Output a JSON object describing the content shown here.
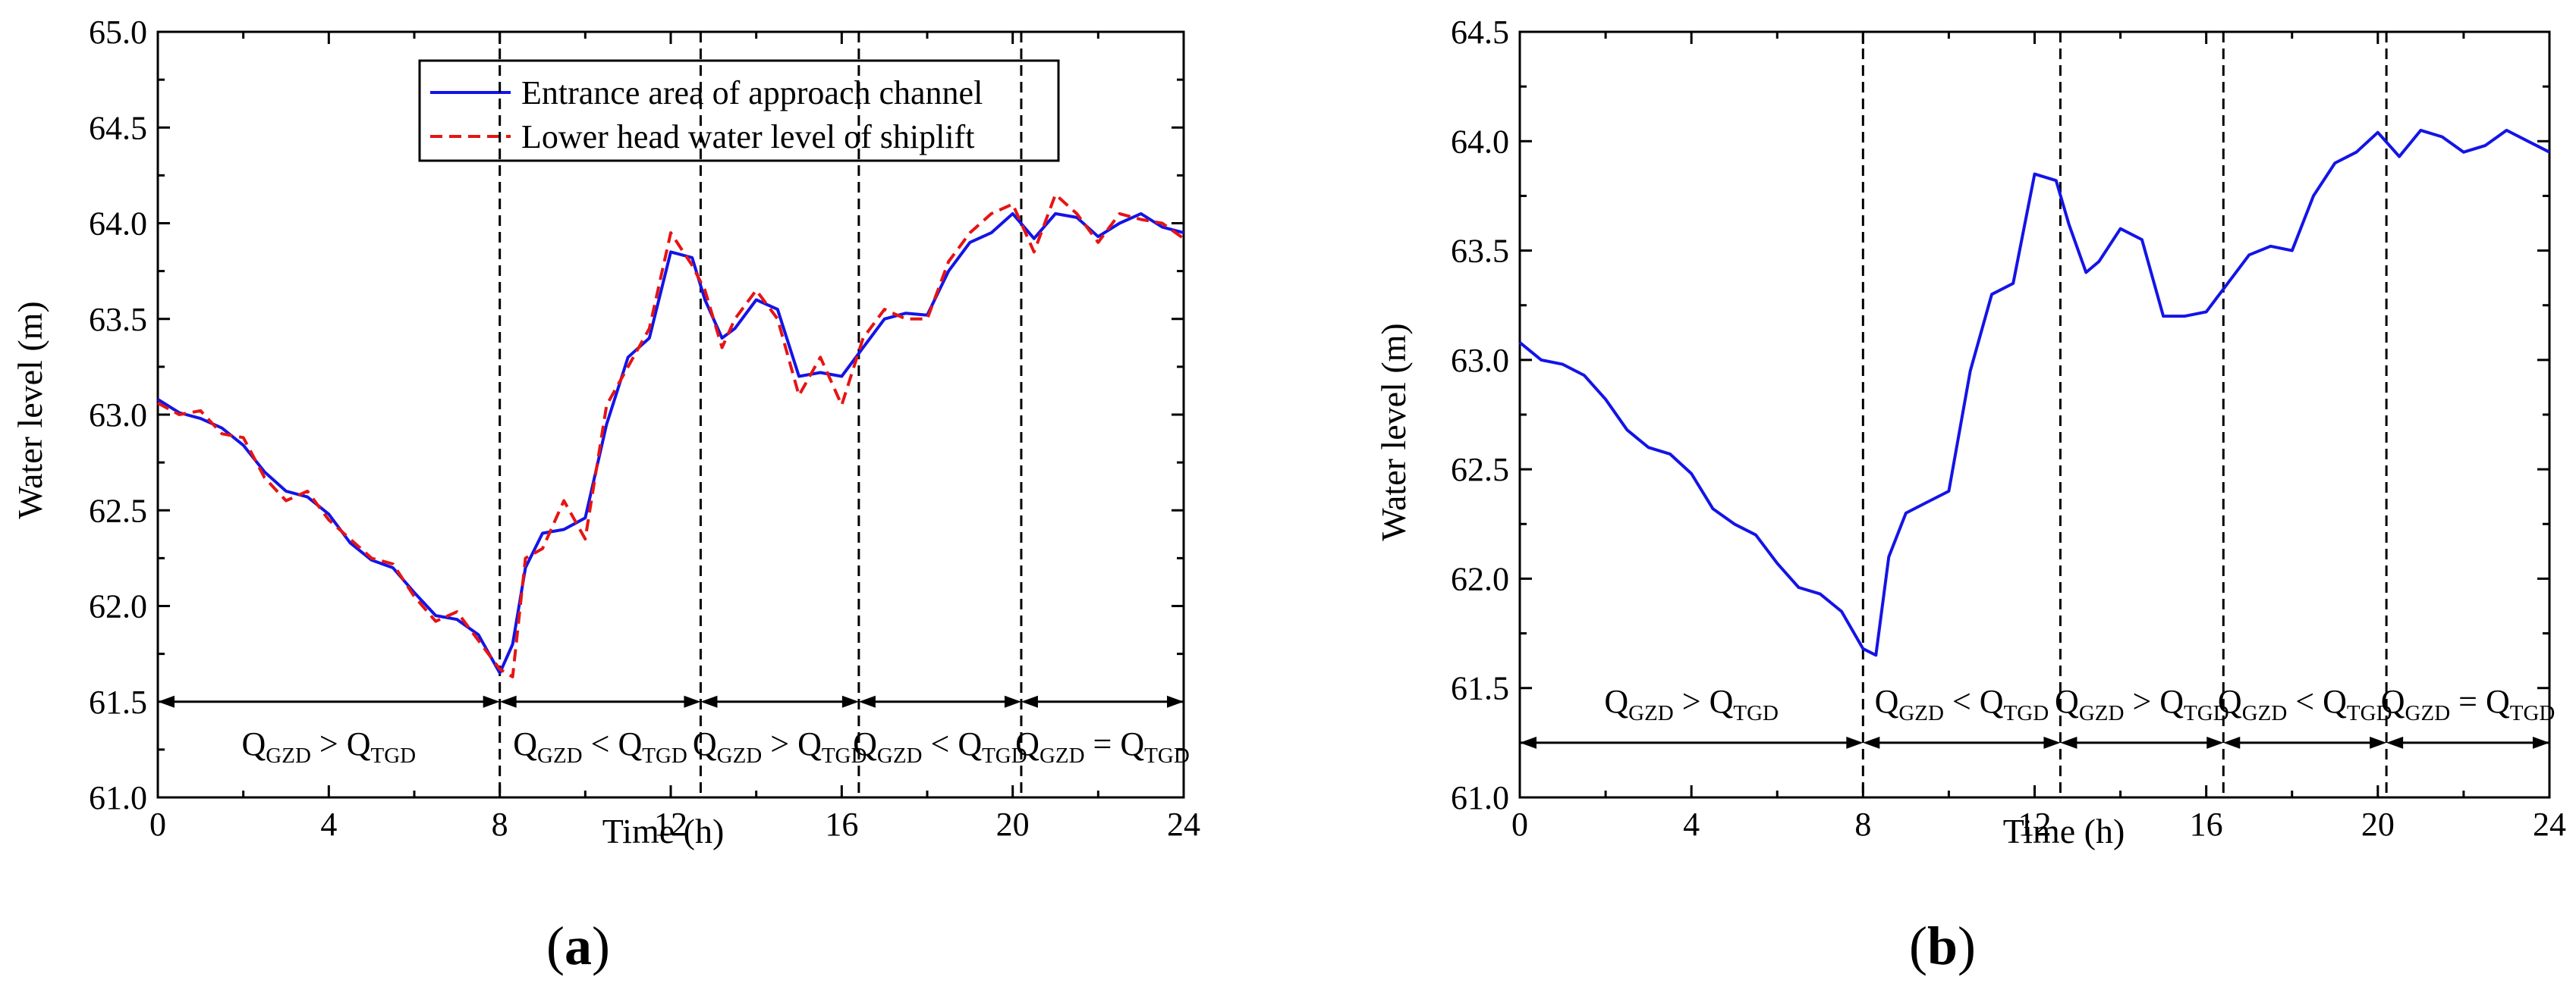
{
  "chart_data": [
    {
      "type": "line",
      "panel_label_prefix": "(",
      "panel_label_letter": "a",
      "panel_label_suffix": ")",
      "xlabel": "Time (h)",
      "ylabel": "Water level (m)",
      "xlim": [
        0,
        24
      ],
      "ylim": [
        61.0,
        65.0
      ],
      "xticks": [
        "0",
        "4",
        "8",
        "12",
        "16",
        "20",
        "24"
      ],
      "yticks": [
        "61.0",
        "61.5",
        "62.0",
        "62.5",
        "63.0",
        "63.5",
        "64.0",
        "64.5",
        "65.0"
      ],
      "dividers": [
        8.0,
        12.7,
        16.4,
        20.2
      ],
      "region_arrow_y": 61.5,
      "regions": [
        {
          "from": 0,
          "to": 8.0,
          "q1": "Q",
          "s1": "GZD",
          "op": ">",
          "q2": "Q",
          "s2": "TGD"
        },
        {
          "from": 8.0,
          "to": 12.7,
          "q1": "Q",
          "s1": "GZD",
          "op": "<",
          "q2": "Q",
          "s2": "TGD"
        },
        {
          "from": 12.7,
          "to": 16.4,
          "q1": "Q",
          "s1": "GZD",
          "op": ">",
          "q2": "Q",
          "s2": "TGD"
        },
        {
          "from": 16.4,
          "to": 20.2,
          "q1": "Q",
          "s1": "GZD",
          "op": "<",
          "q2": "Q",
          "s2": "TGD"
        },
        {
          "from": 20.2,
          "to": 24,
          "q1": "Q",
          "s1": "GZD",
          "op": "=",
          "q2": "Q",
          "s2": "TGD"
        }
      ],
      "legend": {
        "position": "top-center"
      },
      "series": [
        {
          "name": "Entrance area of approach channel",
          "color": "#1414e6",
          "style": "solid",
          "x": [
            0,
            0.5,
            1,
            1.5,
            2,
            2.5,
            3,
            3.5,
            4,
            4.5,
            5,
            5.5,
            6,
            6.5,
            7,
            7.5,
            8,
            8.3,
            8.6,
            9,
            9.5,
            10,
            10.5,
            11,
            11.5,
            12,
            12.5,
            12.8,
            13.2,
            13.5,
            14,
            14.5,
            15,
            15.5,
            16,
            16.5,
            17,
            17.5,
            18,
            18.5,
            19,
            19.5,
            20,
            20.5,
            21,
            21.5,
            22,
            22.5,
            23,
            23.5,
            24
          ],
          "y": [
            63.08,
            63.01,
            62.98,
            62.93,
            62.84,
            62.7,
            62.6,
            62.57,
            62.48,
            62.33,
            62.24,
            62.2,
            62.07,
            61.95,
            61.93,
            61.85,
            61.65,
            61.8,
            62.2,
            62.38,
            62.4,
            62.46,
            62.95,
            63.3,
            63.4,
            63.85,
            63.82,
            63.6,
            63.4,
            63.45,
            63.6,
            63.55,
            63.2,
            63.22,
            63.2,
            63.35,
            63.5,
            63.53,
            63.52,
            63.75,
            63.9,
            63.95,
            64.05,
            63.92,
            64.05,
            64.03,
            63.93,
            64.0,
            64.05,
            63.98,
            63.95
          ]
        },
        {
          "name": "Lower head water level of shiplift",
          "color": "#e61414",
          "style": "dashed",
          "x": [
            0,
            0.5,
            1,
            1.5,
            2,
            2.5,
            3,
            3.5,
            4,
            4.5,
            5,
            5.5,
            6,
            6.5,
            7,
            7.5,
            8,
            8.3,
            8.6,
            9,
            9.5,
            10,
            10.5,
            11,
            11.5,
            12,
            12.5,
            12.8,
            13.2,
            13.5,
            14,
            14.5,
            15,
            15.5,
            16,
            16.5,
            17,
            17.5,
            18,
            18.5,
            19,
            19.5,
            20,
            20.5,
            21,
            21.5,
            22,
            22.5,
            23,
            23.5,
            24
          ],
          "y": [
            63.06,
            63.0,
            63.02,
            62.9,
            62.88,
            62.67,
            62.55,
            62.6,
            62.45,
            62.35,
            62.25,
            62.22,
            62.05,
            61.92,
            61.97,
            61.82,
            61.67,
            61.63,
            62.25,
            62.3,
            62.55,
            62.35,
            63.05,
            63.25,
            63.45,
            63.95,
            63.78,
            63.65,
            63.35,
            63.5,
            63.65,
            63.5,
            63.1,
            63.3,
            63.05,
            63.4,
            63.55,
            63.5,
            63.5,
            63.8,
            63.95,
            64.05,
            64.1,
            63.85,
            64.15,
            64.05,
            63.9,
            64.05,
            64.02,
            64.0,
            63.92
          ]
        }
      ]
    },
    {
      "type": "line",
      "panel_label_prefix": "(",
      "panel_label_letter": "b",
      "panel_label_suffix": ")",
      "xlabel": "Time (h)",
      "ylabel": "Water level (m)",
      "xlim": [
        0,
        24
      ],
      "ylim": [
        61.0,
        64.5
      ],
      "xticks": [
        "0",
        "4",
        "8",
        "12",
        "16",
        "20",
        "24"
      ],
      "yticks": [
        "61.0",
        "61.5",
        "62.0",
        "62.5",
        "63.0",
        "63.5",
        "64.0",
        "64.5"
      ],
      "dividers": [
        8.0,
        12.6,
        16.4,
        20.2
      ],
      "region_arrow_y": 61.25,
      "regions": [
        {
          "from": 0,
          "to": 8.0,
          "q1": "Q",
          "s1": "GZD",
          "op": ">",
          "q2": "Q",
          "s2": "TGD"
        },
        {
          "from": 8.0,
          "to": 12.6,
          "q1": "Q",
          "s1": "GZD",
          "op": "<",
          "q2": "Q",
          "s2": "TGD"
        },
        {
          "from": 12.6,
          "to": 16.4,
          "q1": "Q",
          "s1": "GZD",
          "op": ">",
          "q2": "Q",
          "s2": "TGD"
        },
        {
          "from": 16.4,
          "to": 20.2,
          "q1": "Q",
          "s1": "GZD",
          "op": "<",
          "q2": "Q",
          "s2": "TGD"
        },
        {
          "from": 20.2,
          "to": 24,
          "q1": "Q",
          "s1": "GZD",
          "op": "=",
          "q2": "Q",
          "s2": "TGD"
        }
      ],
      "series": [
        {
          "name": "Entrance area of approach channel",
          "color": "#1414e6",
          "style": "solid",
          "x": [
            0,
            0.5,
            1,
            1.5,
            2,
            2.5,
            3,
            3.5,
            4,
            4.5,
            5,
            5.5,
            6,
            6.5,
            7,
            7.5,
            8,
            8.3,
            8.6,
            9,
            9.5,
            10,
            10.5,
            11,
            11.5,
            12,
            12.5,
            12.8,
            13.2,
            13.5,
            14,
            14.5,
            15,
            15.5,
            16,
            16.5,
            17,
            17.5,
            18,
            18.5,
            19,
            19.5,
            20,
            20.5,
            21,
            21.5,
            22,
            22.5,
            23,
            23.5,
            24
          ],
          "y": [
            63.08,
            63.0,
            62.98,
            62.93,
            62.82,
            62.68,
            62.6,
            62.57,
            62.48,
            62.32,
            62.25,
            62.2,
            62.07,
            61.96,
            61.93,
            61.85,
            61.68,
            61.65,
            62.1,
            62.3,
            62.35,
            62.4,
            62.95,
            63.3,
            63.35,
            63.85,
            63.82,
            63.62,
            63.4,
            63.45,
            63.6,
            63.55,
            63.2,
            63.2,
            63.22,
            63.35,
            63.48,
            63.52,
            63.5,
            63.75,
            63.9,
            63.95,
            64.04,
            63.93,
            64.05,
            64.02,
            63.95,
            63.98,
            64.05,
            64.0,
            63.95
          ]
        }
      ]
    }
  ]
}
